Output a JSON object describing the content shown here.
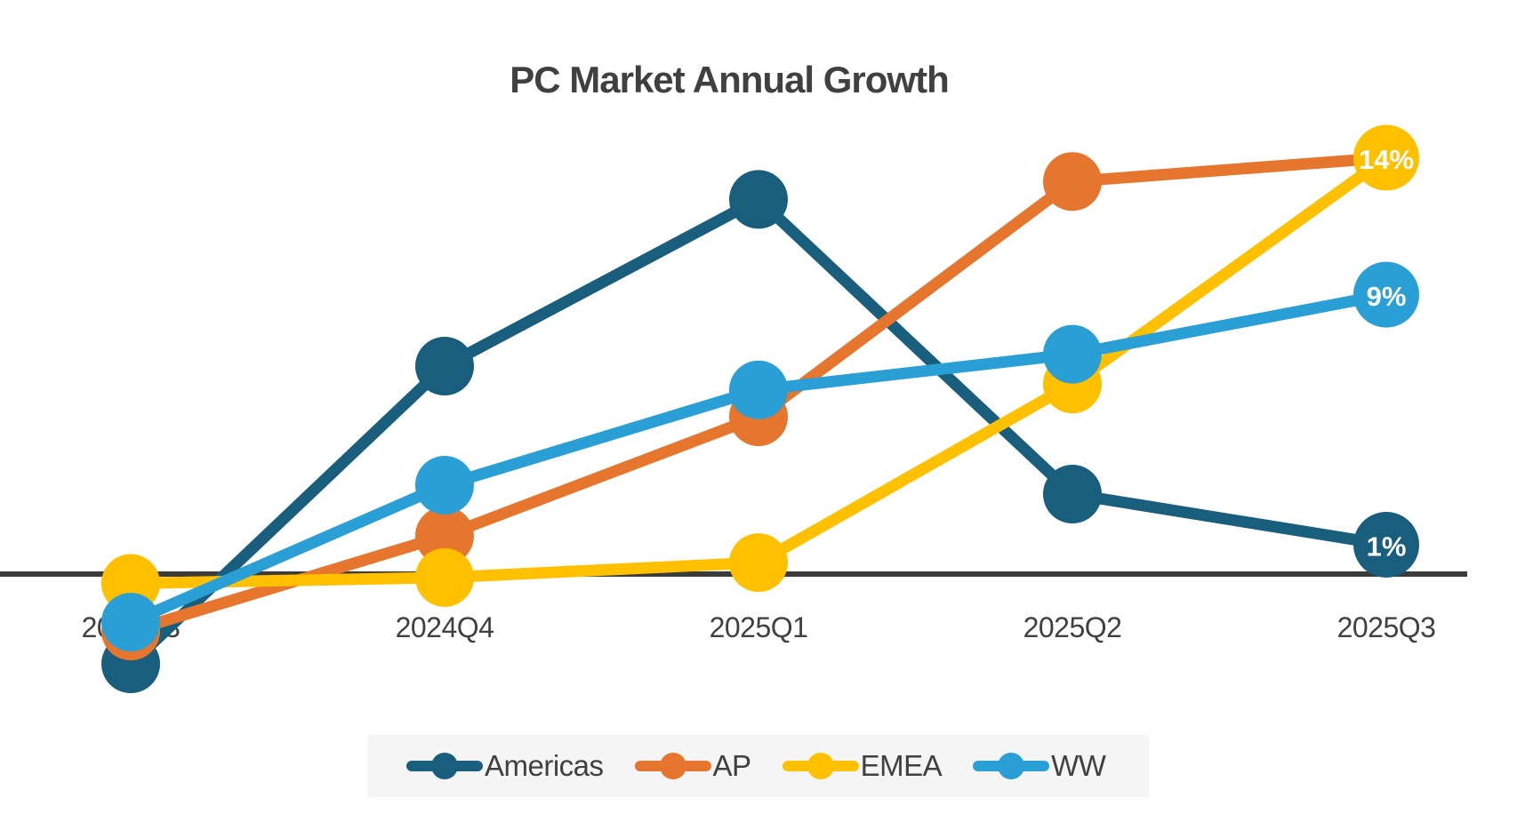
{
  "chart_data": {
    "type": "line",
    "title": "PC Market Annual Growth",
    "xlabel": "",
    "ylabel": "",
    "categories": [
      "2024Q3",
      "2024Q4",
      "2025Q1",
      "2025Q2",
      "2025Q3"
    ],
    "series": [
      {
        "name": "Americas",
        "color": "#1A5E7E",
        "values": [
          -3,
          7,
          12.6,
          2.7,
          1
        ],
        "end_label": "1%"
      },
      {
        "name": "AP",
        "color": "#E6762E",
        "values": [
          -1.9,
          1.3,
          5.3,
          13.2,
          14
        ],
        "end_label": ""
      },
      {
        "name": "EMEA",
        "color": "#FFC000",
        "values": [
          -0.3,
          -0.1,
          0.4,
          6.4,
          14
        ],
        "end_label": "14%"
      },
      {
        "name": "WW",
        "color": "#2A9FD6",
        "values": [
          -1.6,
          3,
          6.2,
          7.4,
          9.4
        ],
        "end_label": "9%"
      }
    ],
    "ylim": [
      -4,
      16
    ],
    "baseline_value": 0,
    "grid": false,
    "y_axis_shown": false,
    "legend_position": "bottom",
    "marker_style": "circle",
    "axis_color": "#3B3B3B",
    "text_color": "#404040",
    "data_label_color": "#FFFFFF",
    "legend_background": "#F5F5F5"
  }
}
